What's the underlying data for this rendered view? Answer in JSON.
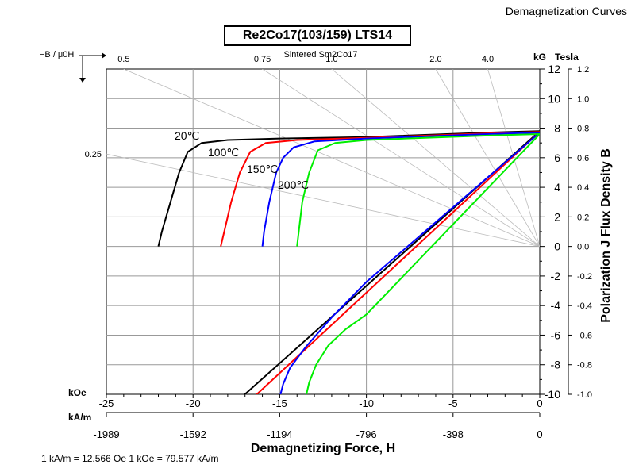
{
  "header": "Demagnetization Curves",
  "chart_data": {
    "type": "line",
    "title": "Re2Co17(103/159) LTS14",
    "subtitle": "Sintered Sm2Co17",
    "xlabel": "Demagnetizing Force, H",
    "ylabel": "Polarization J Flux Density B",
    "x_unit_primary": "kOe",
    "x_unit_secondary": "kA/m",
    "y_unit_primary": "kG",
    "y_unit_secondary": "Tesla",
    "xlim": [
      -25,
      0
    ],
    "ylim": [
      -10,
      12
    ],
    "x_ticks": [
      -25,
      -20,
      -15,
      -10,
      -5,
      0
    ],
    "y_ticks": [
      12,
      10,
      8,
      6,
      4,
      2,
      0,
      -2,
      -4,
      -6,
      -8,
      -10
    ],
    "x_ticks_kAm": [
      {
        "label": "-1989",
        "koe": -25
      },
      {
        "label": "-1592",
        "koe": -20
      },
      {
        "label": "-1194",
        "koe": -15
      },
      {
        "label": "-796",
        "koe": -10
      },
      {
        "label": "-398",
        "koe": -5
      },
      {
        "label": "0",
        "koe": 0
      }
    ],
    "y_ticks_tesla": [
      "1.2",
      "1.0",
      "0.8",
      "0.6",
      "0.4",
      "0.2",
      "0.0",
      "-0.2",
      "-0.4",
      "-0.6",
      "-0.8",
      "-1.0"
    ],
    "permeance_lines": [
      {
        "label": "0.5",
        "slope": 0.5,
        "label_pos": "top"
      },
      {
        "label": "0.75",
        "slope": 0.75,
        "label_pos": "top"
      },
      {
        "label": "1.0",
        "slope": 1.0,
        "label_pos": "top"
      },
      {
        "label": "2.0",
        "slope": 2.0,
        "label_pos": "top"
      },
      {
        "label": "4.0",
        "slope": 4.0,
        "label_pos": "top"
      },
      {
        "label": "0.25",
        "slope": 0.25,
        "label_pos": "left"
      }
    ],
    "permeance_axis_label": "−B / μ0H",
    "series": [
      {
        "name": "20℃",
        "color": "#000000",
        "J": [
          [
            0,
            7.8
          ],
          [
            -3,
            7.7
          ],
          [
            -10,
            7.4
          ],
          [
            -15,
            7.3
          ],
          [
            -18,
            7.2
          ],
          [
            -19.5,
            7.0
          ],
          [
            -20.3,
            6.4
          ],
          [
            -20.8,
            5.0
          ],
          [
            -21.3,
            3.0
          ],
          [
            -21.8,
            1.0
          ],
          [
            -22.0,
            0
          ]
        ],
        "B": [
          [
            0,
            7.8
          ],
          [
            -17.2,
            -10.2
          ]
        ]
      },
      {
        "name": "100℃",
        "color": "#ff0000",
        "J": [
          [
            0,
            7.75
          ],
          [
            -3,
            7.65
          ],
          [
            -10,
            7.35
          ],
          [
            -14,
            7.2
          ],
          [
            -15.8,
            7.0
          ],
          [
            -16.7,
            6.4
          ],
          [
            -17.3,
            5.0
          ],
          [
            -17.8,
            3.0
          ],
          [
            -18.2,
            1.0
          ],
          [
            -18.4,
            0
          ]
        ],
        "B": [
          [
            0,
            7.75
          ],
          [
            -16.5,
            -10.2
          ]
        ]
      },
      {
        "name": "150℃",
        "color": "#0000ff",
        "J": [
          [
            0,
            7.7
          ],
          [
            -3,
            7.6
          ],
          [
            -10,
            7.3
          ],
          [
            -13,
            7.1
          ],
          [
            -14.2,
            6.7
          ],
          [
            -14.8,
            6.0
          ],
          [
            -15.2,
            5.0
          ],
          [
            -15.6,
            3.0
          ],
          [
            -15.9,
            1.0
          ],
          [
            -16.0,
            0
          ]
        ],
        "B": [
          [
            0,
            7.7
          ],
          [
            -10,
            -2.4
          ],
          [
            -12,
            -4.8
          ],
          [
            -13.5,
            -6.8
          ],
          [
            -14.4,
            -8.2
          ],
          [
            -14.8,
            -9.3
          ],
          [
            -15.0,
            -10.2
          ]
        ]
      },
      {
        "name": "200℃",
        "color": "#00ee00",
        "J": [
          [
            0,
            7.6
          ],
          [
            -3,
            7.5
          ],
          [
            -10,
            7.2
          ],
          [
            -11.8,
            7.0
          ],
          [
            -12.8,
            6.5
          ],
          [
            -13.3,
            5.0
          ],
          [
            -13.7,
            3.0
          ],
          [
            -13.9,
            1.0
          ],
          [
            -14.0,
            0
          ]
        ],
        "B": [
          [
            0,
            7.6
          ],
          [
            -10,
            -4.6
          ],
          [
            -11.2,
            -5.6
          ],
          [
            -12.2,
            -6.7
          ],
          [
            -12.9,
            -8.0
          ],
          [
            -13.3,
            -9.2
          ],
          [
            -13.5,
            -10.2
          ]
        ]
      }
    ]
  },
  "footnote": "1 kA/m = 12.566 Oe   1 kOe = 79.577 kA/m"
}
